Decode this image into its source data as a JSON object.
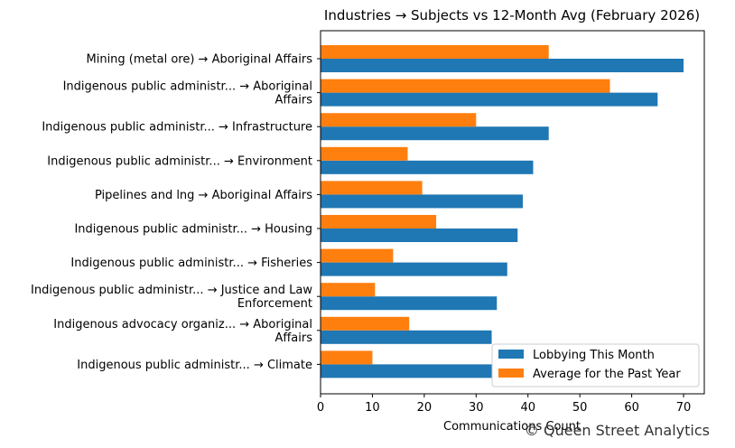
{
  "chart_data": {
    "type": "bar",
    "orientation": "horizontal",
    "title": "Industries → Subjects vs 12-Month Avg (February 2026)",
    "xlabel": "Communications Count",
    "ylabel": "",
    "xlim": [
      0,
      74
    ],
    "x_ticks": [
      0,
      10,
      20,
      30,
      40,
      50,
      60,
      70
    ],
    "grid": false,
    "legend_position": "bottom-right",
    "categories": [
      [
        "Mining (metal ore) → Aboriginal Affairs"
      ],
      [
        "Indigenous public administr... → Aboriginal",
        "Affairs"
      ],
      [
        "Indigenous public administr... → Infrastructure"
      ],
      [
        "Indigenous public administr... → Environment"
      ],
      [
        "Pipelines and lng → Aboriginal Affairs"
      ],
      [
        "Indigenous public administr... → Housing"
      ],
      [
        "Indigenous public administr... → Fisheries"
      ],
      [
        "Indigenous public administr... → Justice and Law",
        "Enforcement"
      ],
      [
        "Indigenous advocacy organiz... → Aboriginal",
        "Affairs"
      ],
      [
        "Indigenous public administr... → Climate"
      ]
    ],
    "series": [
      {
        "name": "Lobbying This Month",
        "color": "#1f77b4",
        "values": [
          70,
          65,
          44,
          41,
          39,
          38,
          36,
          34,
          33,
          33
        ]
      },
      {
        "name": "Average for the Past Year",
        "color": "#ff7f0e",
        "values": [
          44,
          55.8,
          30,
          16.8,
          19.6,
          22.3,
          14,
          10.5,
          17.1,
          10
        ]
      }
    ]
  },
  "watermark": "© Queen Street Analytics"
}
